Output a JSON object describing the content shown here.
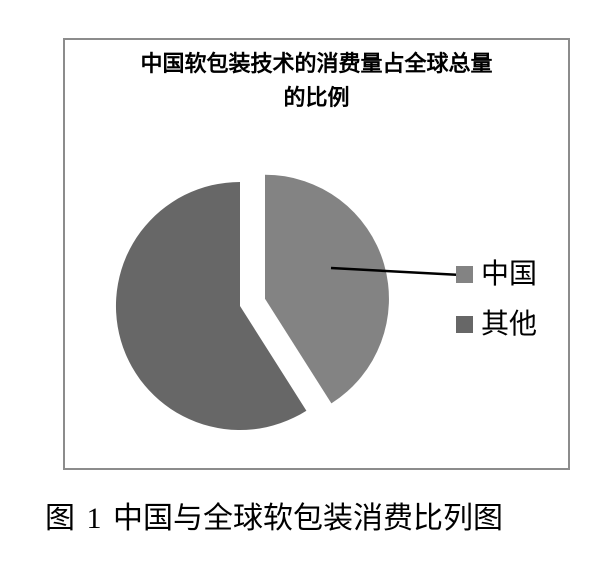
{
  "figure": {
    "title_line1": "中国软包装技术的消费量占全球总量",
    "title_line2": "的比例",
    "caption": "图 1 中国与全球软包装消费比列图"
  },
  "chart_data": {
    "type": "pie",
    "title": "中国软包装技术的消费量占全球总量的比例",
    "slices": [
      {
        "label": "中国",
        "value": 41,
        "color": "#838383",
        "exploded": true
      },
      {
        "label": "其他",
        "value": 59,
        "color": "#676767",
        "exploded": false
      }
    ],
    "start_angle_deg": 0,
    "direction": "clockwise",
    "legend_position": "right",
    "data_labels_shown": false,
    "note": "values estimated from slice angles (~41% vs ~59%); no numeric labels visible in figure"
  },
  "colors": {
    "background": "#ffffff",
    "frame_border": "#8c8c8c",
    "leader_line": "#000000",
    "text": "#000000"
  }
}
